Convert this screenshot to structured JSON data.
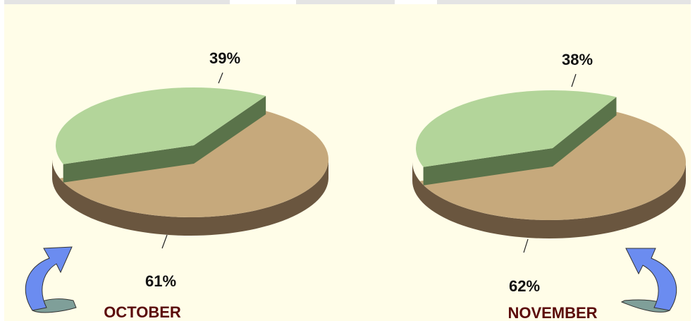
{
  "chart_data": [
    {
      "type": "pie",
      "title": "OCTOBER",
      "slices": [
        {
          "label": "39%",
          "value": 39,
          "color": "#b3d59a",
          "side_color": "#5a734a"
        },
        {
          "label": "61%",
          "value": 61,
          "color": "#c6a97c",
          "side_color": "#6a563f"
        }
      ]
    },
    {
      "type": "pie",
      "title": "NOVEMBER",
      "slices": [
        {
          "label": "38%",
          "value": 38,
          "color": "#b3d59a",
          "side_color": "#5a734a"
        },
        {
          "label": "62%",
          "value": 62,
          "color": "#c6a97c",
          "side_color": "#6a563f"
        }
      ]
    }
  ],
  "colors": {
    "panel_background": "#fffde8",
    "month_label": "#5b0a0a",
    "arrow_fill": "#6b8cf0",
    "arrow_tail": "#7f9f99"
  }
}
